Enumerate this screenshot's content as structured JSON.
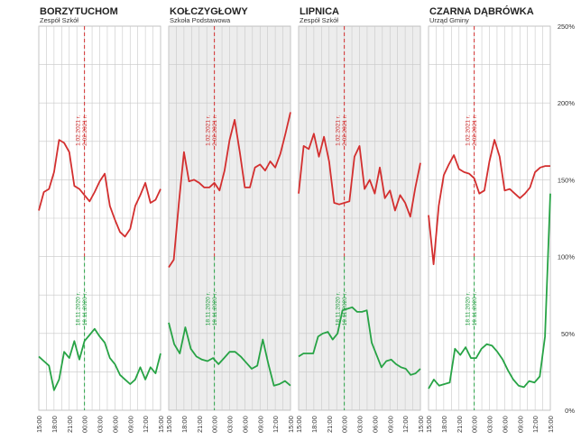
{
  "chart_data": {
    "type": "line",
    "x_ticks": [
      "15:00",
      "18:00",
      "21:00",
      "00:00",
      "03:00",
      "06:00",
      "09:00",
      "12:00",
      "15:00"
    ],
    "y_ticks": [
      "0%",
      "50%",
      "100%",
      "150%",
      "200%",
      "250%"
    ],
    "ylim": [
      0,
      250
    ],
    "grid": true,
    "colors": {
      "red": "#d32f2f",
      "green": "#27a345",
      "grid": "#c8c8c8",
      "panel_fill": "#ededed"
    },
    "panels": [
      {
        "title": "BORZYTUCHOM",
        "subtitle": "Zespół Szkół",
        "shaded": false,
        "red_annotation": [
          "1.02.2021 r.",
          "2.02.2021 r."
        ],
        "green_annotation": [
          "18.11.2020 r.",
          "19.11.2020 r."
        ],
        "red": [
          130,
          142,
          144,
          155,
          176,
          174,
          168,
          146,
          144,
          140,
          136,
          142,
          149,
          154,
          133,
          124,
          116,
          113,
          118,
          133,
          140,
          148,
          135,
          137,
          144
        ],
        "green": [
          35,
          32,
          29,
          13,
          20,
          38,
          34,
          45,
          33,
          45,
          49,
          53,
          48,
          44,
          34,
          30,
          23,
          20,
          17,
          20,
          28,
          20,
          28,
          24,
          37
        ]
      },
      {
        "title": "KOŁCZYGŁOWY",
        "subtitle": "Szkoła Podstawowa",
        "shaded": true,
        "red_annotation": [
          "1.02.2021 r.",
          "2.02.2021 r."
        ],
        "green_annotation": [
          "18.11.2020 r.",
          "19.11.2020 r."
        ],
        "red": [
          93,
          98,
          135,
          168,
          149,
          150,
          148,
          145,
          145,
          148,
          143,
          156,
          176,
          189,
          168,
          145,
          145,
          158,
          160,
          156,
          162,
          158,
          167,
          180,
          194
        ],
        "green": [
          57,
          43,
          37,
          54,
          40,
          35,
          33,
          32,
          34,
          30,
          34,
          38,
          38,
          35,
          31,
          27,
          29,
          46,
          30,
          16,
          17,
          19,
          16
        ]
      },
      {
        "title": "LIPNICA",
        "subtitle": "Zespół Szkół",
        "shaded": true,
        "red_annotation": [
          "1.02.2021 r.",
          "2.02.2021 r."
        ],
        "green_annotation": [
          "18.11.2020 r.",
          "19.11.2020 r."
        ],
        "red": [
          141,
          172,
          170,
          180,
          165,
          178,
          162,
          135,
          134,
          135,
          136,
          165,
          172,
          144,
          150,
          141,
          158,
          138,
          143,
          130,
          140,
          135,
          126,
          145,
          161
        ],
        "green": [
          35,
          37,
          37,
          37,
          48,
          50,
          51,
          46,
          50,
          65,
          66,
          67,
          64,
          64,
          65,
          44,
          36,
          28,
          32,
          33,
          30,
          28,
          27,
          23,
          24,
          27
        ]
      },
      {
        "title": "CZARNA DĄBRÓWKA",
        "subtitle": "Urząd Gminy",
        "shaded": false,
        "red_annotation": [
          "1.02.2021 r.",
          "2.02.2021 r."
        ],
        "green_annotation": [
          "18.11.2020 r.",
          "19.11.2020 r."
        ],
        "red": [
          127,
          95,
          133,
          153,
          160,
          166,
          157,
          155,
          154,
          151,
          141,
          143,
          162,
          176,
          165,
          143,
          144,
          141,
          138,
          141,
          145,
          155,
          158,
          159,
          159
        ],
        "green": [
          14,
          20,
          16,
          17,
          18,
          40,
          36,
          41,
          34,
          34,
          40,
          43,
          42,
          38,
          33,
          26,
          20,
          16,
          15,
          19,
          18,
          22,
          48,
          141
        ]
      }
    ]
  }
}
